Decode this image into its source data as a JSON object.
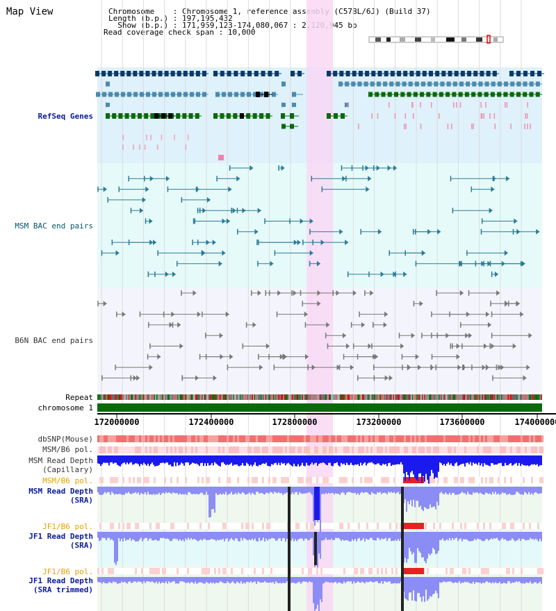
{
  "header": {
    "view_title": "Map View",
    "chromosome_line": "Chromosome    : Chromosome 1, reference assembly (C57BL/6J) (Build 37)",
    "length_line": "Length (b.p.) : 197,195,432",
    "show_line": "  Show (b.p.) : 171,959,123-174,080,067 : 2,120,945 bp",
    "coverage_line": "Read coverage check span : 10,000"
  },
  "tracks": {
    "refseq": "RefSeq Genes",
    "msm_bac": "MSM BAC end pairs",
    "b6n_bac": "B6N BAC end pairs",
    "repeat": "Repeat",
    "chromosome": "chromosome 1",
    "dbsnp": "dbSNP(Mouse)",
    "msm_b6_pol_1": "MSM/B6 pol.",
    "msm_depth_cap": "MSM Read Depth\n(Capillary)",
    "msm_b6_pol_2": "MSM/B6 pol.",
    "msm_depth_sra": "MSM Read Depth\n(SRA)",
    "jf1_b6_pol_1": "JF1/B6 pol.",
    "jf1_depth_sra": "JF1 Read Depth\n(SRA)",
    "jf1_b6_pol_2": "JF1/B6 pol.",
    "jf1_depth_trim": "JF1 Read Depth\n(SRA trimmed)"
  },
  "axis": {
    "ticks": [
      "172000000",
      "172400000",
      "172800000",
      "173200000",
      "173600000",
      "174000000"
    ]
  },
  "colors": {
    "refseq_bg": "#dff1fa",
    "msm_bac_bg": "#e6fafa",
    "b6n_bac_bg": "#f4f4fc",
    "highlight": "#f8d8f4",
    "chromosome_bar": "#0a6a0a",
    "depth_blue": "#1a1aee",
    "depth_light": "#8c8cf5",
    "gene_dark": "#0a3a6a",
    "gene_mid": "#4a8ab0",
    "gene_green": "#0a6a0a"
  }
}
